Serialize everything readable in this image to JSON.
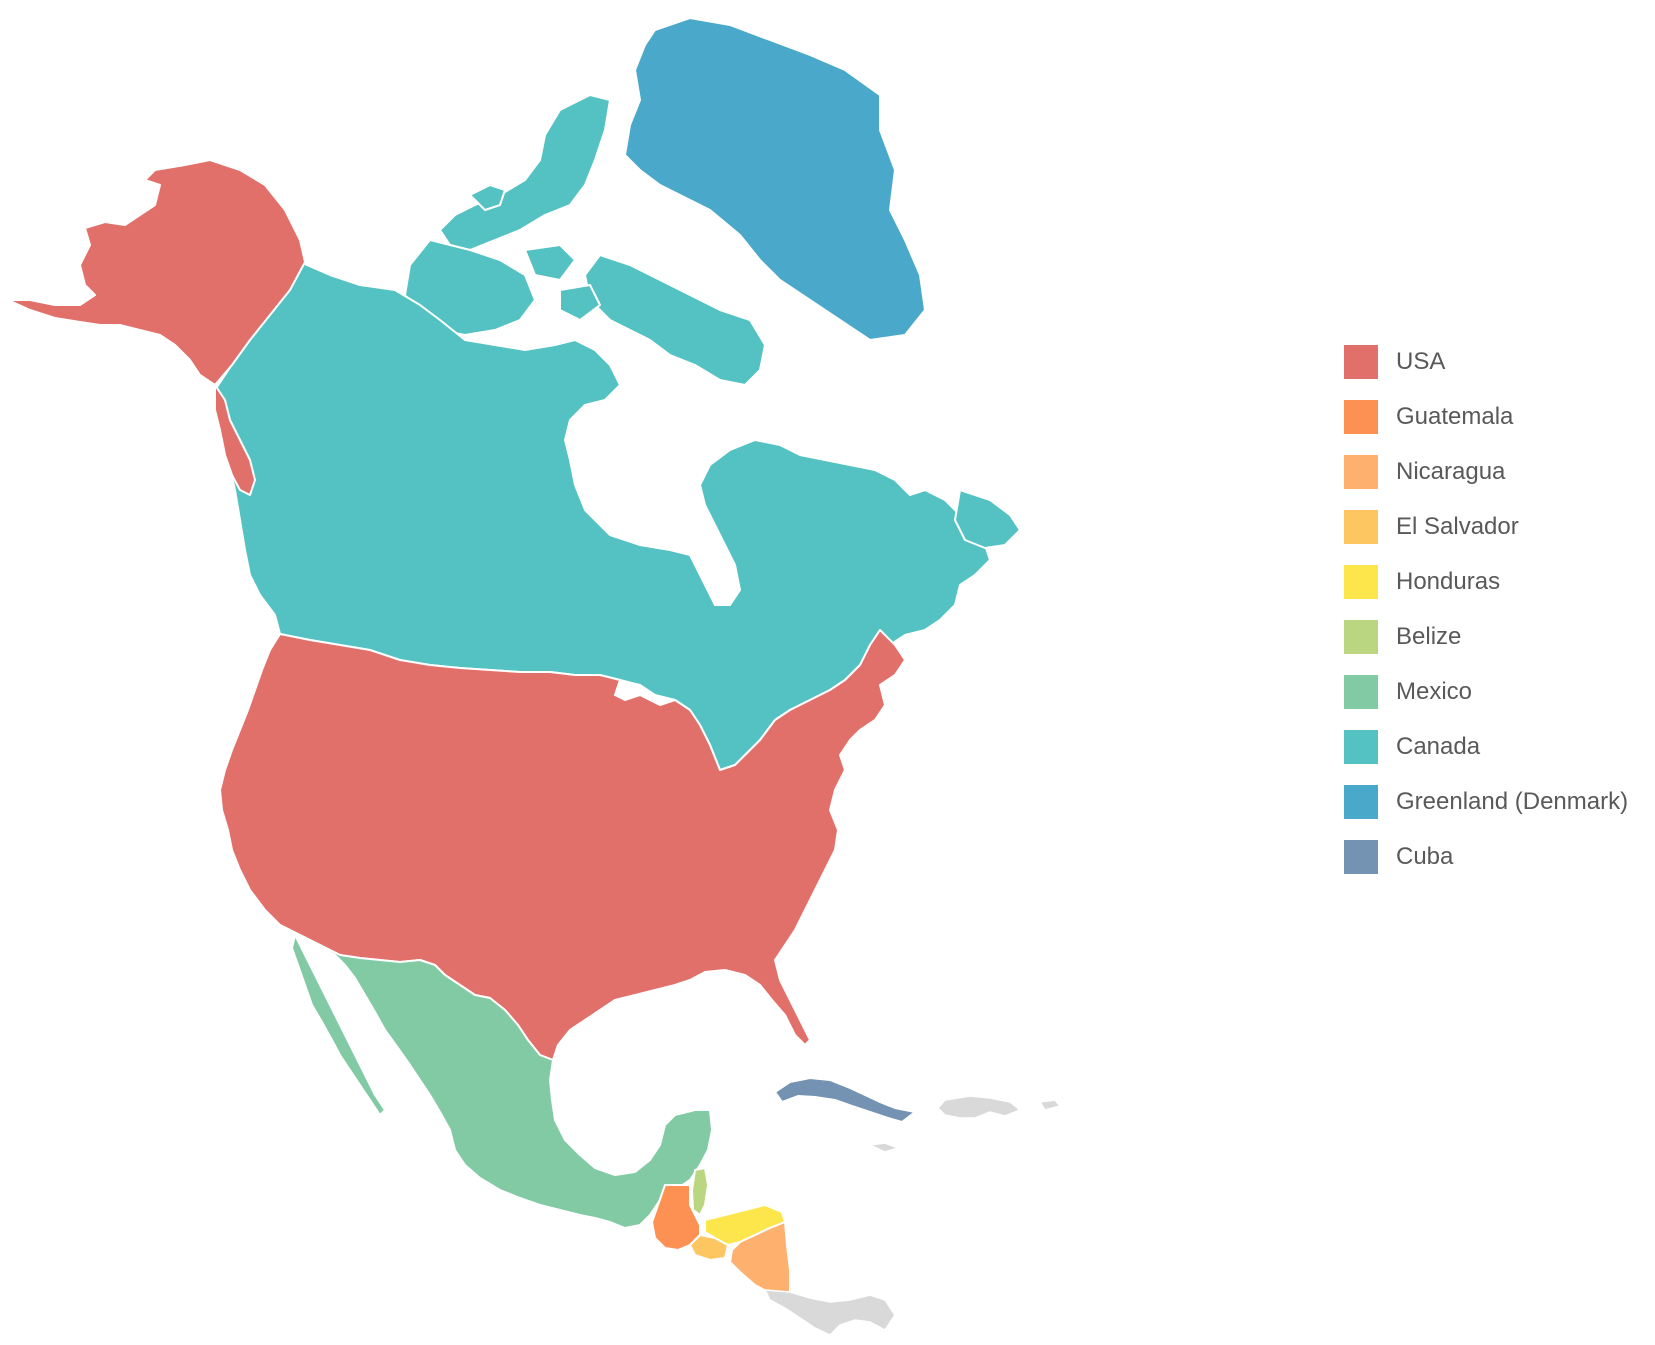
{
  "legend": {
    "items": [
      {
        "key": "usa",
        "label": "USA",
        "color": "#e2706a"
      },
      {
        "key": "guatemala",
        "label": "Guatemala",
        "color": "#fd9154"
      },
      {
        "key": "nicaragua",
        "label": "Nicaragua",
        "color": "#feb16f"
      },
      {
        "key": "el_salvador",
        "label": "El Salvador",
        "color": "#fdc660"
      },
      {
        "key": "honduras",
        "label": "Honduras",
        "color": "#fde64b"
      },
      {
        "key": "belize",
        "label": "Belize",
        "color": "#bad680"
      },
      {
        "key": "mexico",
        "label": "Mexico",
        "color": "#81caa4"
      },
      {
        "key": "canada",
        "label": "Canada",
        "color": "#54c2c2"
      },
      {
        "key": "greenland",
        "label": "Greenland (Denmark)",
        "color": "#4aa9ca"
      },
      {
        "key": "cuba",
        "label": "Cuba",
        "color": "#7492b2"
      }
    ]
  },
  "other_color": "#d9d9d9"
}
